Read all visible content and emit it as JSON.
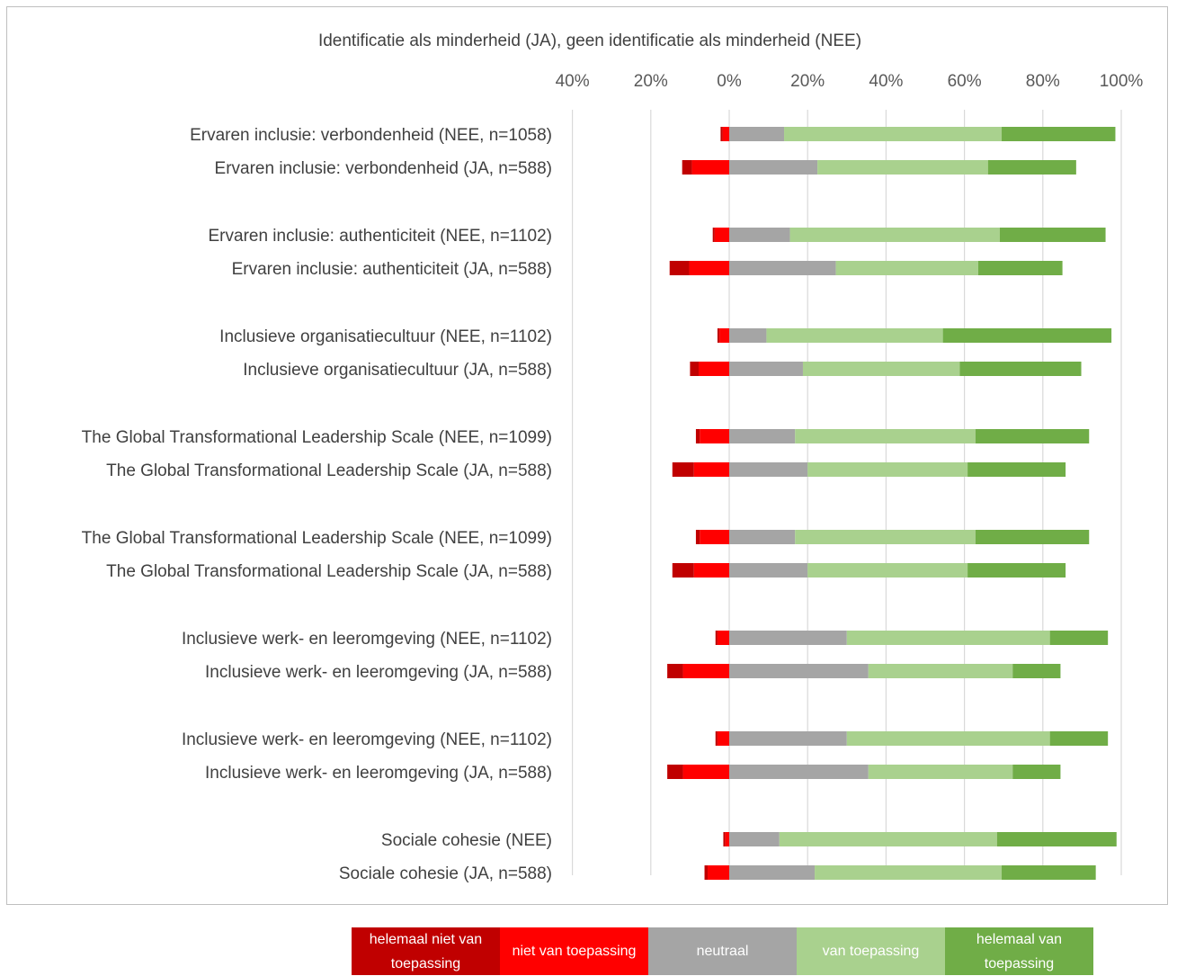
{
  "chart_data": {
    "type": "bar",
    "stacked": "diverging",
    "title": "Identificatie als minderheid (JA), geen identificatie als minderheid (NEE)",
    "xlim": [
      -0.4,
      1.0
    ],
    "xticks": [
      {
        "value": -0.4,
        "label": "40%"
      },
      {
        "value": -0.2,
        "label": "20%"
      },
      {
        "value": 0.0,
        "label": "0%"
      },
      {
        "value": 0.2,
        "label": "20%"
      },
      {
        "value": 0.4,
        "label": "40%"
      },
      {
        "value": 0.6,
        "label": "60%"
      },
      {
        "value": 0.8,
        "label": "80%"
      },
      {
        "value": 1.0,
        "label": "100%"
      }
    ],
    "grid": true,
    "legend_position": "bottom",
    "series": [
      {
        "name": "helemaal niet van toepassing",
        "color": "#c00000"
      },
      {
        "name": "niet van toepassing",
        "color": "#ff0000"
      },
      {
        "name": "neutraal",
        "color": "#a5a5a5"
      },
      {
        "name": "van toepassing",
        "color": "#a9d18e"
      },
      {
        "name": "helemaal van toepassing",
        "color": "#70ad47"
      }
    ],
    "rows": [
      {
        "label": "Ervaren inclusie: verbondenheid (NEE, n=1058)",
        "values": [
          0.005,
          0.017,
          0.14,
          0.555,
          0.29
        ]
      },
      {
        "label": "Ervaren inclusie: verbondenheid (JA, n=588)",
        "values": [
          0.025,
          0.095,
          0.225,
          0.435,
          0.225
        ]
      },
      {
        "label": "Ervaren inclusie: authenticiteit (NEE, n=1102)",
        "values": [
          0.005,
          0.037,
          0.155,
          0.535,
          0.27
        ]
      },
      {
        "label": "Ervaren inclusie: authenticiteit (JA, n=588)",
        "values": [
          0.05,
          0.102,
          0.272,
          0.363,
          0.215
        ]
      },
      {
        "label": "Inclusieve organisatiecultuur (NEE, n=1102)",
        "values": [
          0.005,
          0.025,
          0.095,
          0.45,
          0.43
        ]
      },
      {
        "label": "Inclusieve organisatiecultuur (JA, n=588)",
        "values": [
          0.022,
          0.078,
          0.188,
          0.4,
          0.31
        ]
      },
      {
        "label": "The Global Transformational Leadership Scale (NEE, n=1099)",
        "values": [
          0.01,
          0.075,
          0.168,
          0.46,
          0.29
        ]
      },
      {
        "label": "The Global Transformational Leadership Scale (JA, n=588)",
        "values": [
          0.055,
          0.09,
          0.2,
          0.408,
          0.25
        ]
      },
      {
        "label": "The Global Transformational Leadership Scale (NEE, n=1099)",
        "values": [
          0.01,
          0.075,
          0.168,
          0.46,
          0.29
        ]
      },
      {
        "label": "The Global Transformational Leadership Scale (JA, n=588)",
        "values": [
          0.055,
          0.09,
          0.2,
          0.408,
          0.25
        ]
      },
      {
        "label": "Inclusieve werk- en leeromgeving (NEE, n=1102)",
        "values": [
          0.005,
          0.03,
          0.3,
          0.518,
          0.148
        ]
      },
      {
        "label": "Inclusieve werk- en leeromgeving (JA, n=588)",
        "values": [
          0.04,
          0.118,
          0.355,
          0.368,
          0.122
        ]
      },
      {
        "label": "Inclusieve werk- en leeromgeving (NEE, n=1102)",
        "values": [
          0.005,
          0.03,
          0.3,
          0.518,
          0.148
        ]
      },
      {
        "label": "Inclusieve werk- en leeromgeving (JA, n=588)",
        "values": [
          0.04,
          0.118,
          0.355,
          0.368,
          0.122
        ]
      },
      {
        "label": "Sociale cohesie (NEE)",
        "values": [
          0.005,
          0.01,
          0.128,
          0.555,
          0.305
        ]
      },
      {
        "label": "Sociale cohesie (JA, n=588)",
        "values": [
          0.008,
          0.055,
          0.218,
          0.477,
          0.24
        ]
      }
    ]
  }
}
